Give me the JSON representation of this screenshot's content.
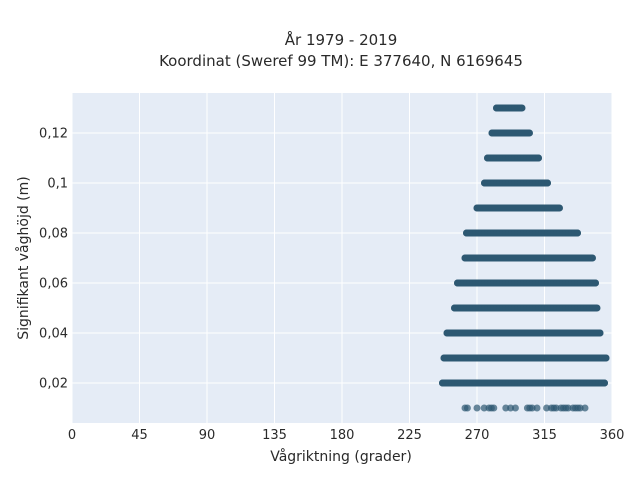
{
  "chart_data": {
    "type": "scatter",
    "title": "År 1979 - 2019",
    "subtitle": "Koordinat (Sweref 99 TM): E 377640, N 6169645",
    "xlabel": "Vågriktning (grader)",
    "ylabel": "Signifikant våghöjd (m)",
    "xlim": [
      0,
      360
    ],
    "ylim": [
      0.004,
      0.136
    ],
    "xticks": [
      0,
      45,
      90,
      135,
      180,
      225,
      270,
      315,
      360
    ],
    "xtick_labels": [
      "0",
      "45",
      "90",
      "135",
      "180",
      "225",
      "270",
      "315",
      "360"
    ],
    "yticks": [
      0.02,
      0.04,
      0.06,
      0.08,
      0.1,
      0.12
    ],
    "ytick_labels": [
      "0,02",
      "0,04",
      "0,06",
      "0,08",
      "0,1",
      "0,12"
    ],
    "grid": true,
    "marker_color": "#2e5872",
    "background_color": "#e5ecf6",
    "grid_color": "#ffffff",
    "bands": [
      {
        "y": 0.01,
        "x_min": 262,
        "x_max": 349,
        "dense": false
      },
      {
        "y": 0.02,
        "x_min": 247,
        "x_max": 355,
        "dense": true
      },
      {
        "y": 0.03,
        "x_min": 248,
        "x_max": 356,
        "dense": true
      },
      {
        "y": 0.04,
        "x_min": 250,
        "x_max": 352,
        "dense": true
      },
      {
        "y": 0.05,
        "x_min": 255,
        "x_max": 350,
        "dense": true
      },
      {
        "y": 0.06,
        "x_min": 257,
        "x_max": 349,
        "dense": true
      },
      {
        "y": 0.07,
        "x_min": 262,
        "x_max": 347,
        "dense": true
      },
      {
        "y": 0.08,
        "x_min": 263,
        "x_max": 337,
        "dense": true
      },
      {
        "y": 0.09,
        "x_min": 270,
        "x_max": 325,
        "dense": true
      },
      {
        "y": 0.1,
        "x_min": 275,
        "x_max": 317,
        "dense": true
      },
      {
        "y": 0.11,
        "x_min": 277,
        "x_max": 311,
        "dense": true
      },
      {
        "y": 0.12,
        "x_min": 280,
        "x_max": 305,
        "dense": true
      },
      {
        "y": 0.13,
        "x_min": 283,
        "x_max": 300,
        "dense": true
      }
    ]
  }
}
